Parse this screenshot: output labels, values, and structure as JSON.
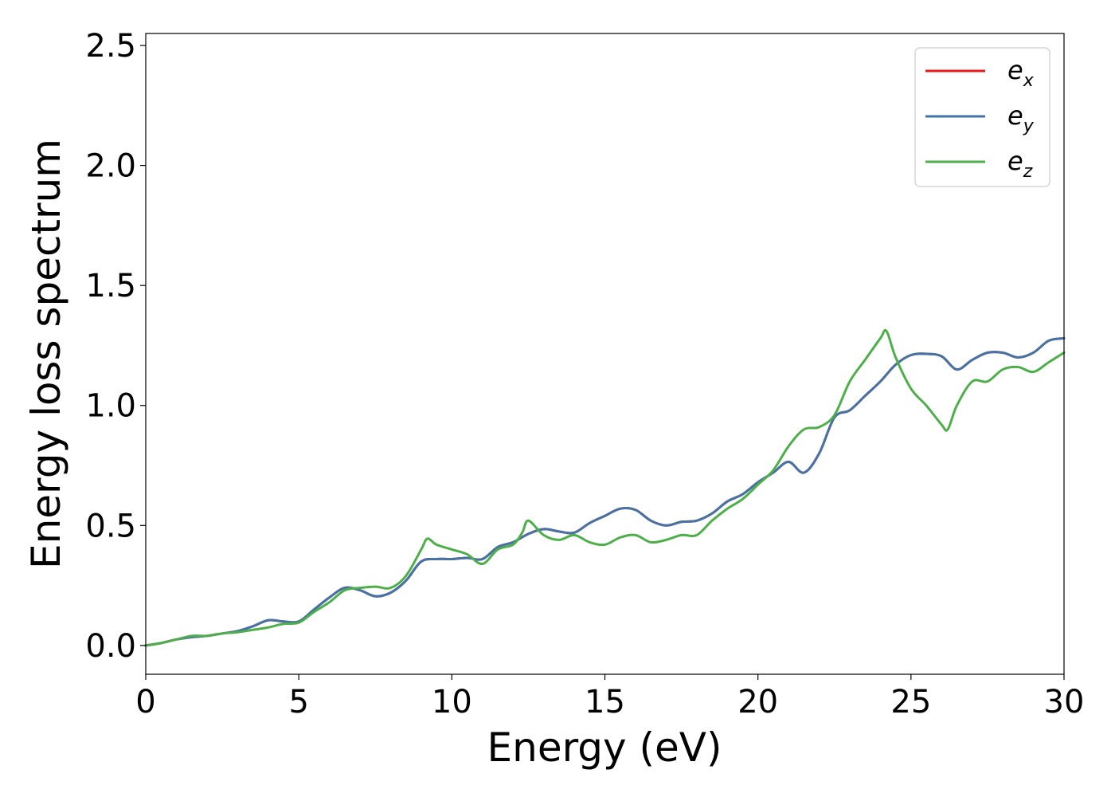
{
  "chart_data": {
    "type": "line",
    "title": "",
    "xlabel": "Energy (eV)",
    "ylabel": "Energy loss spectrum",
    "xlim": [
      0,
      30
    ],
    "ylim": [
      -0.12,
      2.55
    ],
    "xticks": [
      0,
      5,
      10,
      15,
      20,
      25,
      30
    ],
    "xtick_labels": [
      "0",
      "5",
      "10",
      "15",
      "20",
      "25",
      "30"
    ],
    "yticks": [
      0.0,
      0.5,
      1.0,
      1.5,
      2.0,
      2.5
    ],
    "ytick_labels": [
      "0.0",
      "0.5",
      "1.0",
      "1.5",
      "2.0",
      "2.5"
    ],
    "grid": false,
    "legend_position": "top-right",
    "series": [
      {
        "name": "e_x",
        "legend_base": "e",
        "legend_sub": "x",
        "color": "#e41a1c",
        "x": [
          0,
          0.5,
          1.0,
          1.5,
          2.0,
          2.5,
          3.0,
          3.5,
          4.0,
          4.5,
          5.0,
          5.5,
          6.0,
          6.5,
          7.0,
          7.5,
          8.0,
          8.5,
          9.0,
          9.5,
          10.0,
          10.5,
          11.0,
          11.5,
          12.0,
          12.5,
          13.0,
          13.5,
          14.0,
          14.5,
          15.0,
          15.5,
          16.0,
          16.5,
          17.0,
          17.5,
          18.0,
          18.5,
          19.0,
          19.5,
          20.0,
          20.5,
          21.0,
          21.5,
          22.0,
          22.5,
          23.0,
          23.5,
          24.0,
          24.5,
          25.0,
          25.5,
          26.0,
          26.5,
          27.0,
          27.5,
          28.0,
          28.5,
          29.0,
          29.5,
          30.0
        ],
        "y": [
          0.0,
          0.01,
          0.025,
          0.035,
          0.04,
          0.05,
          0.06,
          0.08,
          0.105,
          0.1,
          0.1,
          0.15,
          0.2,
          0.24,
          0.23,
          0.205,
          0.22,
          0.27,
          0.35,
          0.36,
          0.36,
          0.365,
          0.36,
          0.41,
          0.43,
          0.465,
          0.485,
          0.475,
          0.47,
          0.51,
          0.54,
          0.57,
          0.565,
          0.52,
          0.5,
          0.515,
          0.52,
          0.55,
          0.6,
          0.63,
          0.68,
          0.72,
          0.765,
          0.72,
          0.8,
          0.95,
          0.98,
          1.04,
          1.1,
          1.17,
          1.21,
          1.215,
          1.205,
          1.15,
          1.19,
          1.22,
          1.22,
          1.2,
          1.22,
          1.27,
          1.28
        ]
      },
      {
        "name": "e_y",
        "legend_base": "e",
        "legend_sub": "y",
        "color": "#4474a7",
        "x": [
          0,
          0.5,
          1.0,
          1.5,
          2.0,
          2.5,
          3.0,
          3.5,
          4.0,
          4.5,
          5.0,
          5.5,
          6.0,
          6.5,
          7.0,
          7.5,
          8.0,
          8.5,
          9.0,
          9.5,
          10.0,
          10.5,
          11.0,
          11.5,
          12.0,
          12.5,
          13.0,
          13.5,
          14.0,
          14.5,
          15.0,
          15.5,
          16.0,
          16.5,
          17.0,
          17.5,
          18.0,
          18.5,
          19.0,
          19.5,
          20.0,
          20.5,
          21.0,
          21.5,
          22.0,
          22.5,
          23.0,
          23.5,
          24.0,
          24.5,
          25.0,
          25.5,
          26.0,
          26.5,
          27.0,
          27.5,
          28.0,
          28.5,
          29.0,
          29.5,
          30.0
        ],
        "y": [
          0.0,
          0.01,
          0.025,
          0.035,
          0.04,
          0.05,
          0.06,
          0.08,
          0.105,
          0.1,
          0.1,
          0.15,
          0.2,
          0.24,
          0.23,
          0.205,
          0.22,
          0.27,
          0.35,
          0.36,
          0.36,
          0.365,
          0.36,
          0.41,
          0.43,
          0.465,
          0.485,
          0.475,
          0.47,
          0.51,
          0.54,
          0.57,
          0.565,
          0.52,
          0.5,
          0.515,
          0.52,
          0.55,
          0.6,
          0.63,
          0.68,
          0.72,
          0.765,
          0.72,
          0.8,
          0.95,
          0.98,
          1.04,
          1.1,
          1.17,
          1.21,
          1.215,
          1.205,
          1.15,
          1.19,
          1.22,
          1.22,
          1.2,
          1.22,
          1.27,
          1.28
        ]
      },
      {
        "name": "e_z",
        "legend_base": "e",
        "legend_sub": "z",
        "color": "#4daf4a",
        "x": [
          0,
          0.5,
          1.0,
          1.5,
          2.0,
          2.5,
          3.0,
          3.5,
          4.0,
          4.5,
          5.0,
          5.5,
          6.0,
          6.5,
          7.0,
          7.5,
          8.0,
          8.5,
          9.0,
          9.2,
          9.5,
          10.0,
          10.5,
          11.0,
          11.5,
          12.0,
          12.3,
          12.5,
          13.0,
          13.5,
          14.0,
          14.5,
          15.0,
          15.5,
          16.0,
          16.5,
          17.0,
          17.5,
          18.0,
          18.5,
          19.0,
          19.5,
          20.0,
          20.5,
          21.0,
          21.5,
          22.0,
          22.5,
          23.0,
          23.5,
          24.0,
          24.2,
          24.5,
          25.0,
          25.5,
          26.0,
          26.2,
          26.5,
          27.0,
          27.5,
          28.0,
          28.5,
          29.0,
          29.5,
          30.0
        ],
        "y": [
          0.0,
          0.01,
          0.025,
          0.04,
          0.04,
          0.05,
          0.055,
          0.065,
          0.075,
          0.09,
          0.095,
          0.14,
          0.18,
          0.23,
          0.24,
          0.245,
          0.24,
          0.29,
          0.4,
          0.445,
          0.42,
          0.4,
          0.38,
          0.34,
          0.4,
          0.42,
          0.47,
          0.52,
          0.46,
          0.44,
          0.46,
          0.43,
          0.42,
          0.45,
          0.46,
          0.43,
          0.44,
          0.46,
          0.46,
          0.52,
          0.57,
          0.61,
          0.67,
          0.73,
          0.83,
          0.9,
          0.91,
          0.96,
          1.1,
          1.19,
          1.28,
          1.31,
          1.2,
          1.07,
          1.0,
          0.92,
          0.9,
          1.0,
          1.1,
          1.1,
          1.15,
          1.16,
          1.14,
          1.18,
          1.22
        ]
      }
    ]
  }
}
